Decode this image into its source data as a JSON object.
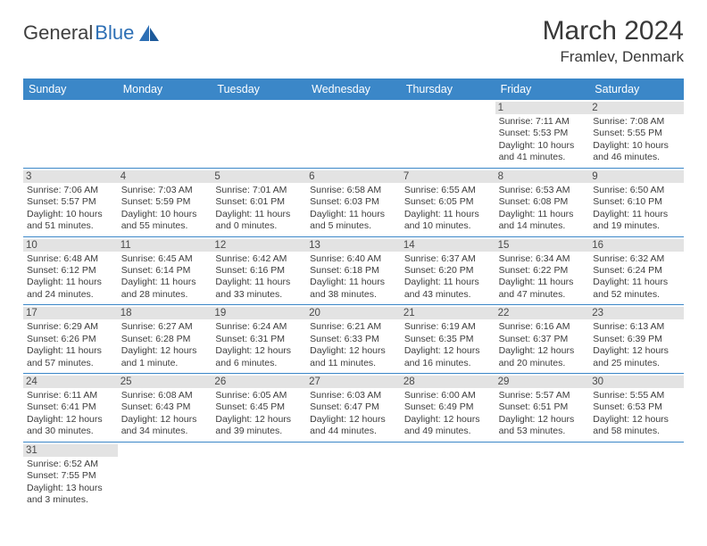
{
  "logo": {
    "general": "General",
    "blue": "Blue",
    "shape_color": "#2d6fb5"
  },
  "header": {
    "month_title": "March 2024",
    "location": "Framlev, Denmark"
  },
  "calendar": {
    "day_names": [
      "Sunday",
      "Monday",
      "Tuesday",
      "Wednesday",
      "Thursday",
      "Friday",
      "Saturday"
    ],
    "header_bg": "#3b87c8",
    "header_fg": "#ffffff",
    "daynum_bg": "#e3e3e3",
    "row_border": "#3b87c8",
    "weeks": [
      [
        null,
        null,
        null,
        null,
        null,
        {
          "n": "1",
          "sr": "7:11 AM",
          "ss": "5:53 PM",
          "dl": "10 hours and 41 minutes."
        },
        {
          "n": "2",
          "sr": "7:08 AM",
          "ss": "5:55 PM",
          "dl": "10 hours and 46 minutes."
        }
      ],
      [
        {
          "n": "3",
          "sr": "7:06 AM",
          "ss": "5:57 PM",
          "dl": "10 hours and 51 minutes."
        },
        {
          "n": "4",
          "sr": "7:03 AM",
          "ss": "5:59 PM",
          "dl": "10 hours and 55 minutes."
        },
        {
          "n": "5",
          "sr": "7:01 AM",
          "ss": "6:01 PM",
          "dl": "11 hours and 0 minutes."
        },
        {
          "n": "6",
          "sr": "6:58 AM",
          "ss": "6:03 PM",
          "dl": "11 hours and 5 minutes."
        },
        {
          "n": "7",
          "sr": "6:55 AM",
          "ss": "6:05 PM",
          "dl": "11 hours and 10 minutes."
        },
        {
          "n": "8",
          "sr": "6:53 AM",
          "ss": "6:08 PM",
          "dl": "11 hours and 14 minutes."
        },
        {
          "n": "9",
          "sr": "6:50 AM",
          "ss": "6:10 PM",
          "dl": "11 hours and 19 minutes."
        }
      ],
      [
        {
          "n": "10",
          "sr": "6:48 AM",
          "ss": "6:12 PM",
          "dl": "11 hours and 24 minutes."
        },
        {
          "n": "11",
          "sr": "6:45 AM",
          "ss": "6:14 PM",
          "dl": "11 hours and 28 minutes."
        },
        {
          "n": "12",
          "sr": "6:42 AM",
          "ss": "6:16 PM",
          "dl": "11 hours and 33 minutes."
        },
        {
          "n": "13",
          "sr": "6:40 AM",
          "ss": "6:18 PM",
          "dl": "11 hours and 38 minutes."
        },
        {
          "n": "14",
          "sr": "6:37 AM",
          "ss": "6:20 PM",
          "dl": "11 hours and 43 minutes."
        },
        {
          "n": "15",
          "sr": "6:34 AM",
          "ss": "6:22 PM",
          "dl": "11 hours and 47 minutes."
        },
        {
          "n": "16",
          "sr": "6:32 AM",
          "ss": "6:24 PM",
          "dl": "11 hours and 52 minutes."
        }
      ],
      [
        {
          "n": "17",
          "sr": "6:29 AM",
          "ss": "6:26 PM",
          "dl": "11 hours and 57 minutes."
        },
        {
          "n": "18",
          "sr": "6:27 AM",
          "ss": "6:28 PM",
          "dl": "12 hours and 1 minute."
        },
        {
          "n": "19",
          "sr": "6:24 AM",
          "ss": "6:31 PM",
          "dl": "12 hours and 6 minutes."
        },
        {
          "n": "20",
          "sr": "6:21 AM",
          "ss": "6:33 PM",
          "dl": "12 hours and 11 minutes."
        },
        {
          "n": "21",
          "sr": "6:19 AM",
          "ss": "6:35 PM",
          "dl": "12 hours and 16 minutes."
        },
        {
          "n": "22",
          "sr": "6:16 AM",
          "ss": "6:37 PM",
          "dl": "12 hours and 20 minutes."
        },
        {
          "n": "23",
          "sr": "6:13 AM",
          "ss": "6:39 PM",
          "dl": "12 hours and 25 minutes."
        }
      ],
      [
        {
          "n": "24",
          "sr": "6:11 AM",
          "ss": "6:41 PM",
          "dl": "12 hours and 30 minutes."
        },
        {
          "n": "25",
          "sr": "6:08 AM",
          "ss": "6:43 PM",
          "dl": "12 hours and 34 minutes."
        },
        {
          "n": "26",
          "sr": "6:05 AM",
          "ss": "6:45 PM",
          "dl": "12 hours and 39 minutes."
        },
        {
          "n": "27",
          "sr": "6:03 AM",
          "ss": "6:47 PM",
          "dl": "12 hours and 44 minutes."
        },
        {
          "n": "28",
          "sr": "6:00 AM",
          "ss": "6:49 PM",
          "dl": "12 hours and 49 minutes."
        },
        {
          "n": "29",
          "sr": "5:57 AM",
          "ss": "6:51 PM",
          "dl": "12 hours and 53 minutes."
        },
        {
          "n": "30",
          "sr": "5:55 AM",
          "ss": "6:53 PM",
          "dl": "12 hours and 58 minutes."
        }
      ],
      [
        {
          "n": "31",
          "sr": "6:52 AM",
          "ss": "7:55 PM",
          "dl": "13 hours and 3 minutes."
        },
        null,
        null,
        null,
        null,
        null,
        null
      ]
    ],
    "labels": {
      "sunrise": "Sunrise:",
      "sunset": "Sunset:",
      "daylight": "Daylight:"
    }
  }
}
